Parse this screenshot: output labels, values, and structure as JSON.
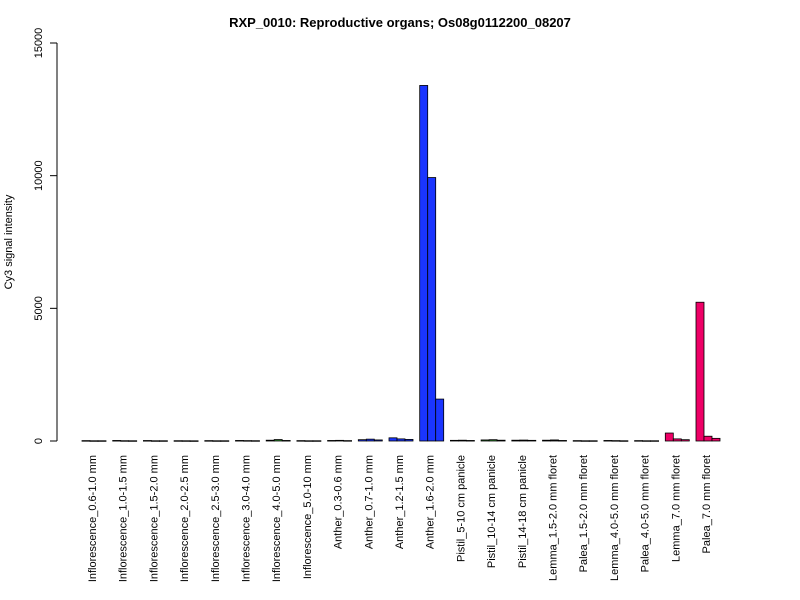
{
  "chart_data": {
    "type": "bar",
    "title": "RXP_0010: Reproductive organs; Os08g0112200_08207",
    "ylabel": "Cy3 signal intensity",
    "xlabel": "",
    "ylim": [
      0,
      15000
    ],
    "yticks": [
      0,
      5000,
      10000,
      15000
    ],
    "ytick_labels": [
      "0",
      "5000",
      "10000",
      "15000"
    ],
    "grid": false,
    "categories": [
      "Inflorescence_0.6-1.0 mm",
      "Inflorescence_1.0-1.5 mm",
      "Inflorescence_1.5-2.0 mm",
      "Inflorescence_2.0-2.5 mm",
      "Inflorescence_2.5-3.0 mm",
      "Inflorescence_3.0-4.0 mm",
      "Inflorescence_4.0-5.0 mm",
      "Inflorescence_5.0-10 mm",
      "Anther_0.3-0.6 mm",
      "Anther_0.7-1.0 mm",
      "Anther_1.2-1.5 mm",
      "Anther_1.6-2.0 mm",
      "Pistil_5-10 cm panicle",
      "Pistil_10-14 cm panicle",
      "Pistil_14-18 cm panicle",
      "Lemma_1.5-2.0 mm floret",
      "Palea_1.5-2.0 mm floret",
      "Lemma_4.0-5.0 mm floret",
      "Palea_4.0-5.0 mm floret",
      "Lemma_7.0 mm floret",
      "Palea_7.0 mm floret"
    ],
    "groups": [
      {
        "values": [
          15,
          10,
          10
        ],
        "colors": [
          "#1a1a1a",
          "#1a1a1a",
          "#1a1a1a"
        ]
      },
      {
        "values": [
          20,
          12,
          10
        ],
        "colors": [
          "#1a1a1a",
          "#1a1a1a",
          "#1a1a1a"
        ]
      },
      {
        "values": [
          18,
          10,
          10
        ],
        "colors": [
          "#1a1a1a",
          "#1a1a1a",
          "#1a1a1a"
        ]
      },
      {
        "values": [
          12,
          10,
          8
        ],
        "colors": [
          "#1a1a1a",
          "#1a1a1a",
          "#1a1a1a"
        ]
      },
      {
        "values": [
          15,
          10,
          10
        ],
        "colors": [
          "#1a1a1a",
          "#1a1a1a",
          "#1a1a1a"
        ]
      },
      {
        "values": [
          20,
          15,
          12
        ],
        "colors": [
          "#1a1a1a",
          "#1a1a1a",
          "#1a1a1a"
        ]
      },
      {
        "values": [
          30,
          55,
          20
        ],
        "colors": [
          "#2e8b2e",
          "#2e8b2e",
          "#2e8b2e"
        ]
      },
      {
        "values": [
          15,
          10,
          10
        ],
        "colors": [
          "#1a1a1a",
          "#1a1a1a",
          "#1a1a1a"
        ]
      },
      {
        "values": [
          20,
          25,
          15
        ],
        "colors": [
          "#1a1a1a",
          "#1a1a1a",
          "#1a1a1a"
        ]
      },
      {
        "values": [
          50,
          70,
          40
        ],
        "colors": [
          "#1a35ff",
          "#1a35ff",
          "#1a35ff"
        ]
      },
      {
        "values": [
          120,
          80,
          60
        ],
        "colors": [
          "#1a35ff",
          "#1a35ff",
          "#1a35ff"
        ]
      },
      {
        "values": [
          13400,
          9930,
          1580
        ],
        "colors": [
          "#1a35ff",
          "#1a35ff",
          "#1a35ff"
        ]
      },
      {
        "values": [
          25,
          30,
          20
        ],
        "colors": [
          "#1a1a1a",
          "#1a1a1a",
          "#1a1a1a"
        ]
      },
      {
        "values": [
          40,
          50,
          30
        ],
        "colors": [
          "#2e8b2e",
          "#2e8b2e",
          "#2e8b2e"
        ]
      },
      {
        "values": [
          30,
          35,
          25
        ],
        "colors": [
          "#1a1a1a",
          "#1a1a1a",
          "#1a1a1a"
        ]
      },
      {
        "values": [
          30,
          40,
          20
        ],
        "colors": [
          "#1a1a1a",
          "#1a1a1a",
          "#1a1a1a"
        ]
      },
      {
        "values": [
          15,
          10,
          10
        ],
        "colors": [
          "#1a1a1a",
          "#1a1a1a",
          "#1a1a1a"
        ]
      },
      {
        "values": [
          20,
          15,
          10
        ],
        "colors": [
          "#1a1a1a",
          "#1a1a1a",
          "#1a1a1a"
        ]
      },
      {
        "values": [
          15,
          10,
          10
        ],
        "colors": [
          "#1a1a1a",
          "#1a1a1a",
          "#1a1a1a"
        ]
      },
      {
        "values": [
          300,
          80,
          50
        ],
        "colors": [
          "#ee0066",
          "#ee0066",
          "#ee0066"
        ]
      },
      {
        "values": [
          5230,
          180,
          100
        ],
        "colors": [
          "#ee0066",
          "#ee0066",
          "#ee0066"
        ]
      }
    ]
  }
}
